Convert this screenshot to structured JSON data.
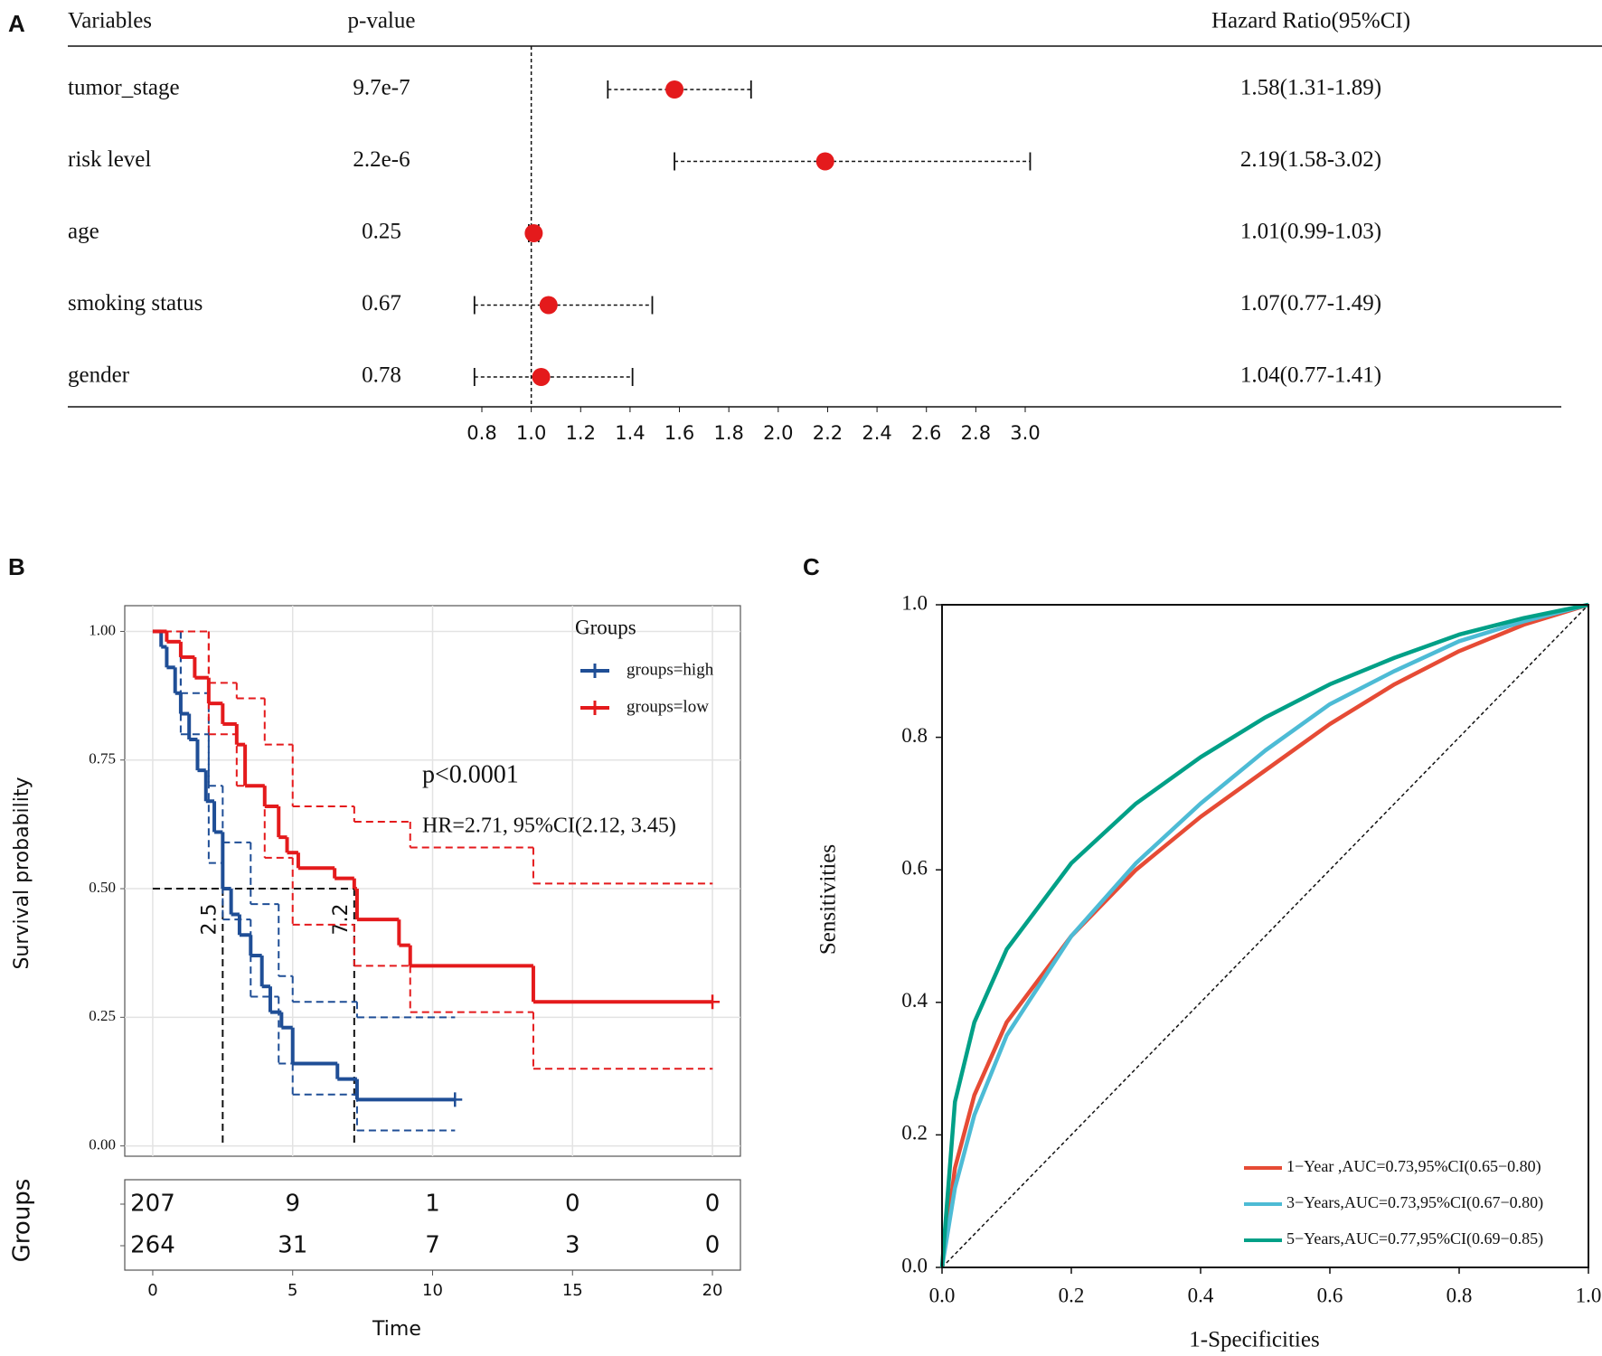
{
  "chart_data": [
    {
      "type": "forest",
      "panel_label": "A",
      "headers": [
        "Variables",
        "p-value",
        "Hazard Ratio(95%CI)"
      ],
      "categories": [
        "tumor_stage",
        "risk level",
        "age",
        "smoking status",
        "gender"
      ],
      "p_values": [
        "9.7e-7",
        "2.2e-6",
        "0.25",
        "0.67",
        "0.78"
      ],
      "values": [
        1.58,
        2.19,
        1.01,
        1.07,
        1.04
      ],
      "lower": [
        1.31,
        1.58,
        0.99,
        0.77,
        0.77
      ],
      "upper": [
        1.89,
        3.02,
        1.03,
        1.49,
        1.41
      ],
      "value_labels": [
        "1.58(1.31-1.89)",
        "2.19(1.58-3.02)",
        "1.01(0.99-1.03)",
        "1.07(0.77-1.49)",
        "1.04(0.77-1.41)"
      ],
      "ref_line": 1,
      "color": "#e41a1c",
      "xlim": [
        0.8,
        3.0
      ],
      "xticks": [
        0.8,
        {
          "value": 1,
          "label": "1.0"
        },
        1.2,
        1.4,
        1.6,
        1.8,
        {
          "value": 2,
          "label": "2.0"
        },
        2.2,
        2.4,
        2.6,
        2.8,
        {
          "value": 3,
          "label": "3.0"
        }
      ]
    },
    {
      "type": "kaplan-meier",
      "panel_label": "B",
      "xlabel": "Time",
      "ylabel": "Survival probability",
      "legend_title": "Groups",
      "annotations": [
        "p<0.0001",
        "HR=2.71, 95%CI(2.12, 3.45)"
      ],
      "median_survival": 0.5,
      "medians": [
        2.5,
        7.2
      ],
      "xlim": [
        -1,
        21
      ],
      "ylim": [
        -0.02,
        1.05
      ],
      "xticks": [
        0,
        5,
        10,
        15,
        20
      ],
      "yticks": [
        {
          "value": 0,
          "label": "0.00"
        },
        0.25,
        {
          "value": 0.5,
          "label": "0.50"
        },
        0.75,
        {
          "value": 1,
          "label": "1.00"
        }
      ],
      "grid": true,
      "series": [
        {
          "name": "groups=high",
          "color": "#1f4e96",
          "x": [
            0,
            0.3,
            0.5,
            0.8,
            1.0,
            1.3,
            1.6,
            1.9,
            2.2,
            2.5,
            2.8,
            3.1,
            3.5,
            3.9,
            4.2,
            4.6,
            5.0,
            6.6,
            7.3,
            10.8
          ],
          "values": [
            1.0,
            0.97,
            0.93,
            0.88,
            0.84,
            0.79,
            0.73,
            0.67,
            0.61,
            0.5,
            0.45,
            0.41,
            0.37,
            0.31,
            0.26,
            0.23,
            0.16,
            0.13,
            0.09,
            0.09
          ],
          "ci": {
            "x": [
              0,
              1,
              2,
              2.5,
              3.5,
              4.5,
              5,
              7.3,
              10.8
            ],
            "upper": [
              1.0,
              0.88,
              0.7,
              0.59,
              0.47,
              0.33,
              0.28,
              0.25,
              0.25
            ],
            "lower": [
              1.0,
              0.8,
              0.55,
              0.44,
              0.29,
              0.16,
              0.1,
              0.03,
              0.03
            ]
          }
        },
        {
          "name": "groups=low",
          "color": "#e41a1c",
          "x": [
            0,
            0.5,
            1.0,
            1.5,
            2.0,
            2.5,
            3.0,
            3.3,
            4.0,
            4.5,
            4.8,
            5.2,
            6.5,
            7.2,
            7.3,
            8.8,
            9.2,
            13.6,
            20
          ],
          "values": [
            1.0,
            0.98,
            0.95,
            0.91,
            0.86,
            0.82,
            0.78,
            0.7,
            0.66,
            0.6,
            0.57,
            0.54,
            0.52,
            0.5,
            0.44,
            0.39,
            0.35,
            0.28,
            0.28
          ],
          "ci": {
            "x": [
              0,
              2,
              3,
              4,
              5,
              7.2,
              9.2,
              13.6,
              20
            ],
            "upper": [
              1.0,
              0.9,
              0.87,
              0.78,
              0.66,
              0.63,
              0.58,
              0.51,
              0.51
            ],
            "lower": [
              1.0,
              0.8,
              0.7,
              0.56,
              0.43,
              0.35,
              0.26,
              0.15,
              0.15
            ]
          }
        }
      ],
      "risk_table": {
        "title": "Groups",
        "rows": [
          [
            207,
            9,
            1,
            0,
            0
          ],
          [
            264,
            31,
            7,
            3,
            0
          ]
        ]
      }
    },
    {
      "type": "line",
      "panel_label": "C",
      "xlabel": "1-Specificities",
      "ylabel": "Sensitivities",
      "xlim": [
        0,
        1
      ],
      "ylim": [
        0,
        1
      ],
      "xticks": [
        {
          "value": 0,
          "label": "0.0"
        },
        0.2,
        0.4,
        0.6,
        0.8,
        {
          "value": 1,
          "label": "1.0"
        }
      ],
      "yticks": [
        {
          "value": 0,
          "label": "0.0"
        },
        0.2,
        0.4,
        0.6,
        0.8,
        {
          "value": 1,
          "label": "1.0"
        }
      ],
      "legend_position": "lower right",
      "series": [
        {
          "name": "1−Year ,AUC=0.73,95%CI(0.65−0.80)",
          "color": "#e64b35",
          "x": [
            0,
            0.02,
            0.05,
            0.1,
            0.2,
            0.3,
            0.4,
            0.5,
            0.6,
            0.7,
            0.8,
            0.9,
            1
          ],
          "values": [
            0,
            0.15,
            0.26,
            0.37,
            0.5,
            0.6,
            0.68,
            0.75,
            0.82,
            0.88,
            0.93,
            0.97,
            1
          ]
        },
        {
          "name": "3−Years,AUC=0.73,95%CI(0.67−0.80)",
          "color": "#4dbbd5",
          "x": [
            0,
            0.02,
            0.05,
            0.1,
            0.2,
            0.3,
            0.4,
            0.5,
            0.6,
            0.7,
            0.8,
            0.9,
            1
          ],
          "values": [
            0,
            0.12,
            0.23,
            0.35,
            0.5,
            0.61,
            0.7,
            0.78,
            0.85,
            0.9,
            0.945,
            0.975,
            1
          ]
        },
        {
          "name": "5−Years,AUC=0.77,95%CI(0.69−0.85)",
          "color": "#00a087",
          "x": [
            0,
            0.02,
            0.05,
            0.1,
            0.2,
            0.3,
            0.4,
            0.5,
            0.6,
            0.7,
            0.8,
            0.9,
            1
          ],
          "values": [
            0,
            0.25,
            0.37,
            0.48,
            0.61,
            0.7,
            0.77,
            0.83,
            0.88,
            0.92,
            0.955,
            0.98,
            1
          ]
        }
      ]
    }
  ]
}
